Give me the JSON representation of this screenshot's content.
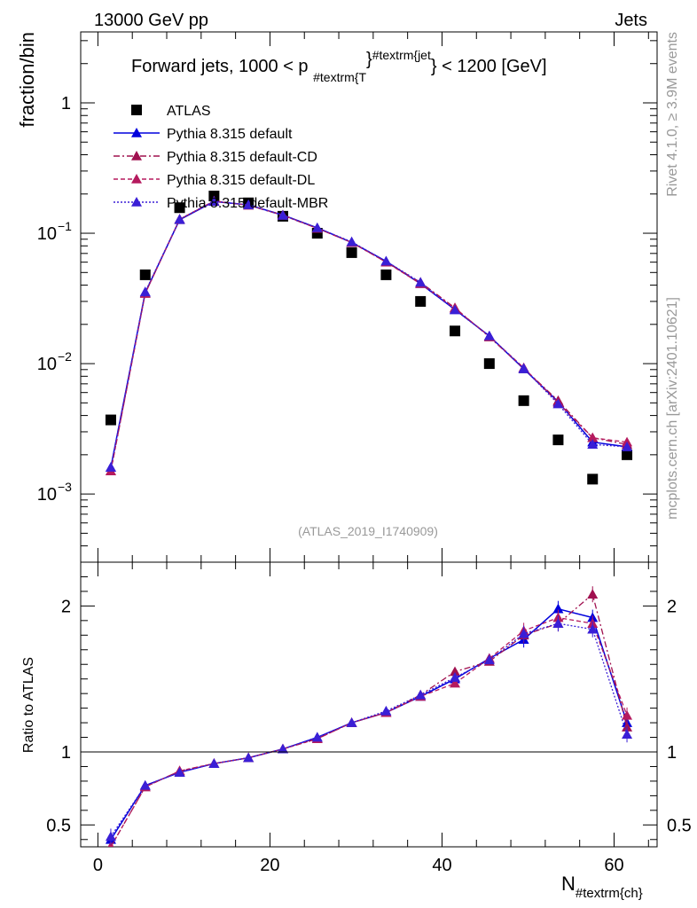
{
  "header": {
    "energy_label": "13000 GeV pp",
    "process_label": "Jets",
    "rivet_label": "Rivet 4.1.0, ≥ 3.9M events",
    "mcplots_label": "mcplots.cern.ch [arXiv:2401.10621]"
  },
  "colors": {
    "data": "#000000",
    "default": "#0000dd",
    "default_cd": "#a0104f",
    "default_dl": "#b51a5e",
    "default_mbr": "#3a1fd6",
    "axis": "#000000",
    "watermark": "#999999"
  },
  "chart_data": [
    {
      "type": "line",
      "panel": "main",
      "title": "Forward jets, 1000 < p_{#textrm{T}}^{#textrm{jet}} < 1200 [GeV]",
      "title_parts": {
        "prefix": "Forward jets, 1000 < p",
        "subscript": "#textrm{T",
        "close_sub": "}",
        "superscript": "#textrm{jet",
        "suffix": "} < 1200 [GeV]"
      },
      "ylabel": "fraction/bin",
      "yscale": "log",
      "ylim": [
        0.0003,
        3.5
      ],
      "xlim": [
        -2,
        65
      ],
      "yticks": [
        {
          "value": 1,
          "label": "1"
        },
        {
          "value": 0.1,
          "label": "10",
          "exp": "−1"
        },
        {
          "value": 0.01,
          "label": "10",
          "exp": "−2"
        },
        {
          "value": 0.001,
          "label": "10",
          "exp": "−3"
        }
      ],
      "watermark": "(ATLAS_2019_I1740909)",
      "x": [
        1.5,
        5.5,
        9.5,
        13.5,
        17.5,
        21.5,
        25.5,
        29.5,
        33.5,
        37.5,
        41.5,
        45.5,
        49.5,
        53.5,
        57.5,
        61.5
      ],
      "series": [
        {
          "name": "ATLAS",
          "key": "atlas",
          "style": "data",
          "values": [
            0.0037,
            0.048,
            0.157,
            0.193,
            0.171,
            0.135,
            0.1,
            0.071,
            0.048,
            0.03,
            0.0178,
            0.01,
            0.0052,
            0.0026,
            0.0013,
            0.002
          ]
        },
        {
          "name": "Pythia 8.315 default",
          "key": "default",
          "style": "solid",
          "values": [
            0.0016,
            0.035,
            0.127,
            0.175,
            0.165,
            0.138,
            0.11,
            0.085,
            0.061,
            0.041,
            0.026,
            0.0163,
            0.0091,
            0.0051,
            0.0025,
            0.0023
          ]
        },
        {
          "name": "Pythia 8.315 default-CD",
          "key": "default_cd",
          "style": "dashdot",
          "values": [
            0.0015,
            0.0345,
            0.128,
            0.176,
            0.164,
            0.137,
            0.109,
            0.085,
            0.06,
            0.042,
            0.0268,
            0.016,
            0.0092,
            0.0052,
            0.0027,
            0.0024
          ]
        },
        {
          "name": "Pythia 8.315 default-DL",
          "key": "default_dl",
          "style": "dashed",
          "values": [
            0.0015,
            0.0345,
            0.128,
            0.177,
            0.164,
            0.138,
            0.109,
            0.085,
            0.06,
            0.041,
            0.0265,
            0.0162,
            0.0093,
            0.005,
            0.0027,
            0.0025
          ]
        },
        {
          "name": "Pythia 8.315 default-MBR",
          "key": "default_mbr",
          "style": "dotted",
          "values": [
            0.0016,
            0.0355,
            0.128,
            0.176,
            0.165,
            0.137,
            0.11,
            0.086,
            0.061,
            0.042,
            0.0258,
            0.0163,
            0.0092,
            0.0049,
            0.0024,
            0.0023
          ]
        }
      ]
    },
    {
      "type": "line",
      "panel": "ratio",
      "ylabel": "Ratio to ATLAS",
      "xlabel": "N_{#textrm{ch}}",
      "xlabel_parts": {
        "main": "N",
        "subscript": "#textrm{ch}"
      },
      "ylim": [
        0.35,
        2.3
      ],
      "xlim": [
        -2,
        65
      ],
      "yticks": [
        0.5,
        1,
        2
      ],
      "ytick_labels": [
        "0.5",
        "1",
        "2"
      ],
      "xticks": [
        0,
        20,
        40,
        60
      ],
      "xtick_labels": [
        "0",
        "20",
        "40",
        "60"
      ],
      "x": [
        1.5,
        5.5,
        9.5,
        13.5,
        17.5,
        21.5,
        25.5,
        29.5,
        33.5,
        37.5,
        41.5,
        45.5,
        49.5,
        53.5,
        57.5,
        61.5
      ],
      "series": [
        {
          "name": "Pythia 8.315 default",
          "key": "default",
          "style": "solid",
          "values": [
            0.4,
            0.77,
            0.86,
            0.92,
            0.96,
            1.02,
            1.1,
            1.2,
            1.27,
            1.38,
            1.5,
            1.64,
            1.77,
            1.98,
            1.92,
            1.2
          ]
        },
        {
          "name": "Pythia 8.315 default-CD",
          "key": "default_cd",
          "style": "dashdot",
          "values": [
            0.35,
            0.76,
            0.87,
            0.92,
            0.96,
            1.02,
            1.09,
            1.2,
            1.27,
            1.39,
            1.55,
            1.62,
            1.8,
            1.88,
            2.08,
            1.17
          ]
        },
        {
          "name": "Pythia 8.315 default-DL",
          "key": "default_dl",
          "style": "dashed",
          "values": [
            0.35,
            0.76,
            0.87,
            0.92,
            0.96,
            1.02,
            1.09,
            1.2,
            1.27,
            1.38,
            1.47,
            1.64,
            1.83,
            1.92,
            1.88,
            1.25
          ]
        },
        {
          "name": "Pythia 8.315 default-MBR",
          "key": "default_mbr",
          "style": "dotted",
          "values": [
            0.42,
            0.77,
            0.86,
            0.92,
            0.96,
            1.02,
            1.1,
            1.2,
            1.28,
            1.39,
            1.51,
            1.63,
            1.81,
            1.88,
            1.84,
            1.12
          ]
        }
      ]
    }
  ]
}
